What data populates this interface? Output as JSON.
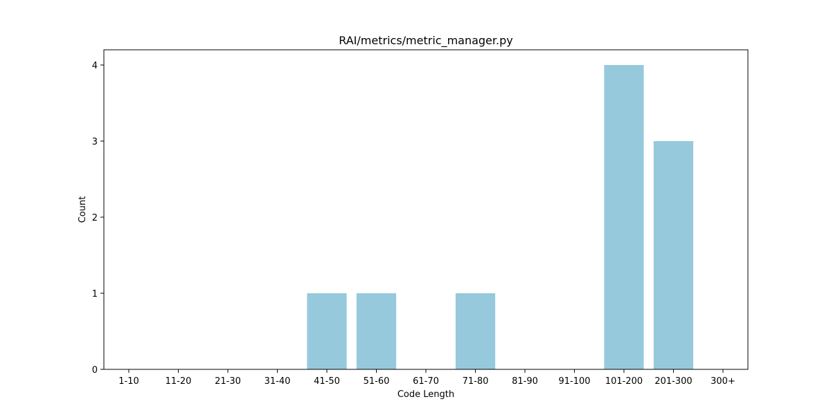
{
  "chart_data": {
    "type": "bar",
    "title": "RAI/metrics/metric_manager.py",
    "xlabel": "Code Length",
    "ylabel": "Count",
    "categories": [
      "1-10",
      "11-20",
      "21-30",
      "31-40",
      "41-50",
      "51-60",
      "61-70",
      "71-80",
      "81-90",
      "91-100",
      "101-200",
      "201-300",
      "300+"
    ],
    "values": [
      0,
      0,
      0,
      0,
      1,
      1,
      0,
      1,
      0,
      0,
      4,
      3,
      0
    ],
    "yticks": [
      0,
      1,
      2,
      3,
      4
    ],
    "ylim": [
      0,
      4.2
    ],
    "bar_color": "#96c9dc",
    "grid": false,
    "legend": "none"
  }
}
